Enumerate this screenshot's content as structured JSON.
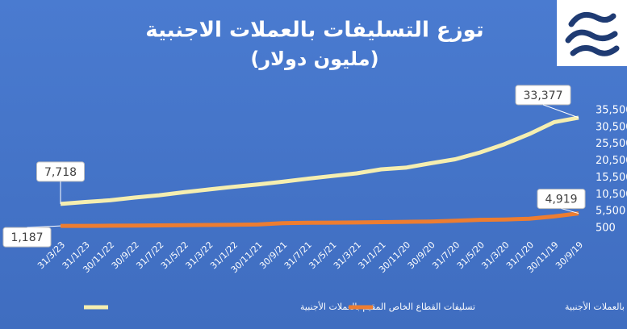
{
  "chart_data": {
    "type": "line",
    "title": "توزع التسليفات بالعملات الاجنبية",
    "subtitle": "(مليون دولار)",
    "categories": [
      "31/3/23",
      "31/1/23",
      "30/11/22",
      "30/9/22",
      "31/7/22",
      "31/5/22",
      "31/3/22",
      "31/1/22",
      "30/11/21",
      "30/9/21",
      "31/7/21",
      "31/5/21",
      "31/3/21",
      "31/1/21",
      "30/11/20",
      "30/9/20",
      "31/7/20",
      "31/5/20",
      "31/3/20",
      "31/1/20",
      "30/11/19",
      "30/9/19"
    ],
    "series": [
      {
        "name": "تسليفات القطاع الخاص المقيم بالعملات الأجنبية",
        "color": "#f5eeb0",
        "values": [
          7718,
          8300,
          8800,
          9600,
          10300,
          11200,
          12000,
          12800,
          13500,
          14300,
          15200,
          16000,
          16800,
          18000,
          18500,
          19800,
          21000,
          23000,
          25500,
          28500,
          32000,
          33377
        ],
        "value_labels": [
          "7,718",
          null,
          null,
          null,
          null,
          null,
          null,
          null,
          null,
          null,
          null,
          null,
          null,
          null,
          null,
          null,
          null,
          null,
          null,
          null,
          null,
          "33,377"
        ]
      },
      {
        "name": "تسليفات القطاع الخاص غير المقيم بالعملات الأجنبية",
        "color": "#ed7d31",
        "values": [
          1187,
          1200,
          1250,
          1300,
          1350,
          1400,
          1450,
          1500,
          1600,
          2000,
          2100,
          2150,
          2200,
          2300,
          2400,
          2500,
          2700,
          3000,
          3100,
          3300,
          4000,
          4919
        ],
        "value_labels": [
          "1,187",
          null,
          null,
          null,
          null,
          null,
          null,
          null,
          null,
          null,
          null,
          null,
          null,
          null,
          null,
          null,
          null,
          null,
          null,
          null,
          null,
          "4,919"
        ]
      }
    ],
    "ylim": [
      500,
      35500
    ],
    "yticks": [
      500,
      {
        "value": 5500,
        "label": "5,500"
      },
      {
        "value": 10500,
        "label": "10,500"
      },
      {
        "value": 15500,
        "label": "15,500"
      },
      {
        "value": 20500,
        "label": "20,500"
      },
      {
        "value": 25500,
        "label": "25,500"
      },
      {
        "value": 30500,
        "label": "30,500"
      },
      {
        "value": 35500,
        "label": "35,500"
      }
    ],
    "grid": false
  }
}
